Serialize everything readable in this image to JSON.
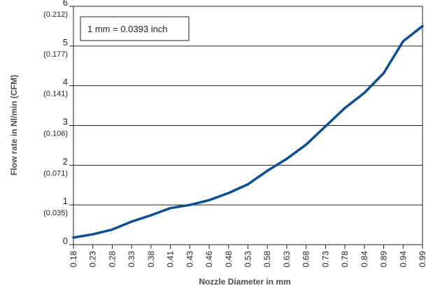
{
  "chart_data": {
    "type": "line",
    "title": "",
    "xlabel": "Nozzle Diameter in mm",
    "ylabel": "Flow rate in Nl/min (CFM)",
    "annotation": "1 mm = 0.0393 inch",
    "ylim": [
      0,
      6
    ],
    "grid": true,
    "legend": "none",
    "y_ticks": [
      {
        "value": 0,
        "label": "0",
        "sub": ""
      },
      {
        "value": 1,
        "label": "1",
        "sub": "(0.035)"
      },
      {
        "value": 2,
        "label": "2",
        "sub": "(0.071)"
      },
      {
        "value": 3,
        "label": "3",
        "sub": "(0.106)"
      },
      {
        "value": 4,
        "label": "4",
        "sub": "(0.141)"
      },
      {
        "value": 5,
        "label": "5",
        "sub": "(0.177)"
      },
      {
        "value": 6,
        "label": "6",
        "sub": "(0.212)"
      }
    ],
    "categories": [
      "0.18",
      "0.23",
      "0.28",
      "0.33",
      "0.38",
      "0.41",
      "0.43",
      "0.46",
      "0.48",
      "0.53",
      "0.58",
      "0.63",
      "0.68",
      "0.73",
      "0.78",
      "0.84",
      "0.89",
      "0.94",
      "0.99"
    ],
    "series": [
      {
        "values": [
          0.18,
          0.26,
          0.38,
          0.58,
          0.74,
          0.92,
          1.0,
          1.12,
          1.3,
          1.52,
          1.86,
          2.16,
          2.52,
          2.98,
          3.44,
          3.82,
          4.32,
          5.12,
          5.5
        ],
        "color": "#0d4d92"
      }
    ],
    "colors": {
      "line": "#0d4d92",
      "grid": "#231f20",
      "frame": "#231f20"
    }
  }
}
